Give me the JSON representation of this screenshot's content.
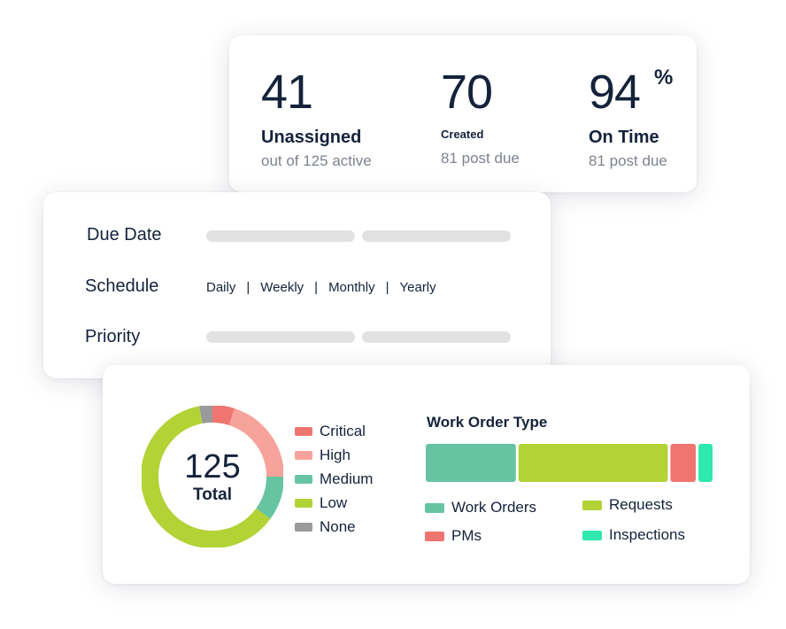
{
  "stats": [
    {
      "value": "41",
      "suffix": "",
      "label": "Unassigned",
      "sub": "out of 125 active"
    },
    {
      "value": "70",
      "suffix": "",
      "label": "Created",
      "sub": "81 post due"
    },
    {
      "value": "94",
      "suffix": "%",
      "label": "On Time",
      "sub": "81 post due"
    }
  ],
  "filters": {
    "due_date_label": "Due Date",
    "schedule_label": "Schedule",
    "schedule_options": [
      "Daily",
      "Weekly",
      "Monthly",
      "Yearly"
    ],
    "schedule_separator": "|",
    "priority_label": "Priority"
  },
  "priority": {
    "total_value": "125",
    "total_label": "Total",
    "legend": [
      {
        "name": "Critical",
        "color": "#ef7570"
      },
      {
        "name": "High",
        "color": "#f7a39b"
      },
      {
        "name": "Medium",
        "color": "#66c4a3"
      },
      {
        "name": "Low",
        "color": "#b2d235"
      },
      {
        "name": "None",
        "color": "#9a9a9a"
      }
    ]
  },
  "work_order": {
    "title": "Work Order Type",
    "legend": [
      {
        "name": "Work Orders",
        "color": "#66c4a3"
      },
      {
        "name": "Requests",
        "color": "#b2d235"
      },
      {
        "name": "PMs",
        "color": "#ef7570"
      },
      {
        "name": "Inspections",
        "color": "#2ee8ae"
      }
    ]
  },
  "chart_data": [
    {
      "type": "pie",
      "variant": "donut",
      "center_text": [
        "125",
        "Total"
      ],
      "categories": [
        "Critical",
        "High",
        "Medium",
        "Low",
        "None"
      ],
      "values": [
        0.05,
        0.2,
        0.1,
        0.62,
        0.03
      ],
      "value_unit": "estimated share of total",
      "colors": [
        "#ef7570",
        "#f7a39b",
        "#66c4a3",
        "#b2d235",
        "#9a9a9a"
      ],
      "legend": "right"
    },
    {
      "type": "bar",
      "variant": "stacked-horizontal",
      "title": "Work Order Type",
      "categories": [
        "Work Orders",
        "Requests",
        "PMs",
        "Inspections"
      ],
      "values": [
        0.32,
        0.53,
        0.09,
        0.05
      ],
      "value_unit": "estimated share of total",
      "colors": [
        "#66c4a3",
        "#b2d235",
        "#ef7570",
        "#2ee8ae"
      ],
      "legend": "bottom"
    }
  ]
}
